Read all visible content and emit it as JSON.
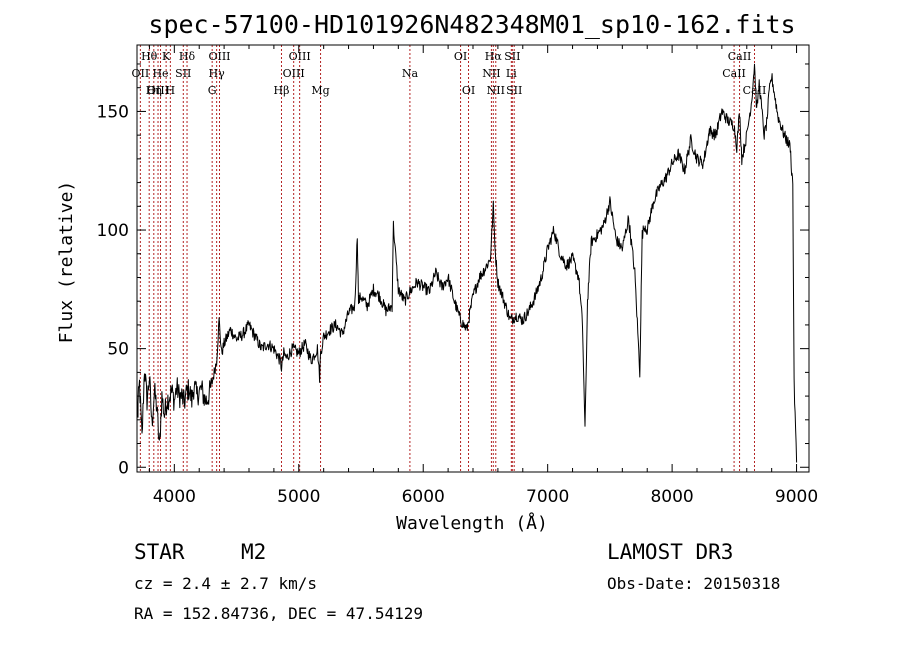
{
  "chart_data": {
    "type": "line",
    "title": "spec-57100-HD101926N482348M01_sp10-162.fits",
    "xlabel": "Wavelength (Å)",
    "ylabel": "Flux (relative)",
    "xlim": [
      3700,
      9100
    ],
    "ylim": [
      -2,
      178
    ],
    "xticks": [
      4000,
      5000,
      6000,
      7000,
      8000,
      9000
    ],
    "yticks": [
      0,
      50,
      100,
      150
    ],
    "xtick_labels": [
      "4000",
      "5000",
      "6000",
      "7000",
      "8000",
      "9000"
    ],
    "ytick_labels": [
      "0",
      "50",
      "100",
      "150"
    ],
    "series": [
      {
        "x": [
          3700,
          3720,
          3740,
          3760,
          3780,
          3800,
          3820,
          3840,
          3860,
          3880,
          3900,
          3920,
          3940,
          3960,
          3980,
          4000,
          4020,
          4040,
          4060,
          4080,
          4100,
          4120,
          4140,
          4160,
          4180,
          4200,
          4220,
          4240,
          4260,
          4280,
          4300,
          4320,
          4340,
          4360,
          4380,
          4400,
          4450,
          4500,
          4550,
          4600,
          4650,
          4700,
          4750,
          4800,
          4850,
          4861,
          4880,
          4900,
          4950,
          5000,
          5050,
          5100,
          5150,
          5167,
          5175,
          5200,
          5250,
          5300,
          5350,
          5400,
          5450,
          5470,
          5480,
          5500,
          5550,
          5600,
          5650,
          5700,
          5750,
          5760,
          5800,
          5850,
          5893,
          5950,
          6000,
          6050,
          6100,
          6150,
          6200,
          6250,
          6300,
          6350,
          6400,
          6450,
          6500,
          6540,
          6563,
          6580,
          6600,
          6650,
          6700,
          6750,
          6800,
          6850,
          6900,
          6950,
          7000,
          7050,
          7100,
          7150,
          7200,
          7250,
          7280,
          7300,
          7320,
          7350,
          7400,
          7450,
          7500,
          7550,
          7600,
          7650,
          7700,
          7740,
          7760,
          7780,
          7800,
          7850,
          7900,
          7950,
          8000,
          8050,
          8100,
          8150,
          8200,
          8250,
          8300,
          8350,
          8400,
          8450,
          8498,
          8520,
          8542,
          8560,
          8600,
          8640,
          8662,
          8680,
          8700,
          8740,
          8760,
          8780,
          8800,
          8850,
          8900,
          8950,
          8960,
          8970,
          8980,
          9000
        ],
        "values": [
          20,
          35,
          12,
          42,
          28,
          38,
          18,
          32,
          25,
          8,
          30,
          22,
          28,
          30,
          32,
          28,
          34,
          30,
          30,
          27,
          32,
          33,
          28,
          35,
          30,
          32,
          33,
          29,
          28,
          31,
          35,
          40,
          45,
          62,
          48,
          52,
          58,
          54,
          56,
          60,
          55,
          50,
          52,
          50,
          45,
          42,
          48,
          46,
          50,
          48,
          52,
          45,
          50,
          38,
          48,
          55,
          58,
          60,
          56,
          65,
          68,
          98,
          70,
          72,
          68,
          75,
          72,
          66,
          68,
          102,
          75,
          70,
          74,
          78,
          76,
          74,
          82,
          76,
          80,
          70,
          62,
          58,
          72,
          80,
          84,
          88,
          110,
          90,
          78,
          70,
          62,
          64,
          62,
          66,
          72,
          80,
          92,
          100,
          90,
          85,
          88,
          80,
          60,
          15,
          70,
          95,
          98,
          102,
          112,
          96,
          92,
          105,
          82,
          40,
          98,
          102,
          100,
          112,
          118,
          122,
          128,
          132,
          125,
          138,
          130,
          128,
          142,
          140,
          150,
          146,
          144,
          135,
          150,
          130,
          140,
          155,
          170,
          150,
          162,
          140,
          145,
          158,
          165,
          148,
          140,
          135,
          125,
          120,
          35,
          2
        ]
      }
    ],
    "spectral_lines": [
      {
        "label": "Hθ",
        "wavelength": 3798,
        "row": 1
      },
      {
        "label": "OII",
        "wavelength": 3727,
        "row": 2
      },
      {
        "label": "He",
        "wavelength": 3889,
        "row": 2
      },
      {
        "label": "OIII",
        "wavelength": 3869,
        "row": 3
      },
      {
        "label": "Hη",
        "wavelength": 3835,
        "row": 3
      },
      {
        "label": "K",
        "wavelength": 3934,
        "row": 1
      },
      {
        "label": "H",
        "wavelength": 3968,
        "row": 3
      },
      {
        "label": "SII",
        "wavelength": 4072,
        "row": 2
      },
      {
        "label": "Hδ",
        "wavelength": 4102,
        "row": 1
      },
      {
        "label": "OIII",
        "wavelength": 4363,
        "row": 1
      },
      {
        "label": "Hγ",
        "wavelength": 4340,
        "row": 2
      },
      {
        "label": "G",
        "wavelength": 4304,
        "row": 3
      },
      {
        "label": "Hβ",
        "wavelength": 4861,
        "row": 3
      },
      {
        "label": "OIII",
        "wavelength": 5007,
        "row": 1
      },
      {
        "label": "OIII",
        "wavelength": 4959,
        "row": 2
      },
      {
        "label": "Mg",
        "wavelength": 5175,
        "row": 3
      },
      {
        "label": "Na",
        "wavelength": 5893,
        "row": 2
      },
      {
        "label": "OI",
        "wavelength": 6300,
        "row": 1
      },
      {
        "label": "OI",
        "wavelength": 6364,
        "row": 3
      },
      {
        "label": "Hα",
        "wavelength": 6563,
        "row": 1
      },
      {
        "label": "NII",
        "wavelength": 6548,
        "row": 2
      },
      {
        "label": "NII",
        "wavelength": 6583,
        "row": 3
      },
      {
        "label": "SII",
        "wavelength": 6716,
        "row": 1
      },
      {
        "label": "Li",
        "wavelength": 6708,
        "row": 2
      },
      {
        "label": "SII",
        "wavelength": 6731,
        "row": 3
      },
      {
        "label": "CaII",
        "wavelength": 8542,
        "row": 1
      },
      {
        "label": "CaII",
        "wavelength": 8498,
        "row": 2
      },
      {
        "label": "CaII",
        "wavelength": 8662,
        "row": 3
      }
    ],
    "line_color": "#000000",
    "marker_color": "#b22222",
    "grid": false
  },
  "info": {
    "object_class": "STAR",
    "subclass": "M2",
    "survey": "LAMOST DR3",
    "redshift": "cz = 2.4 ± 2.7 km/s",
    "obs_date": "Obs-Date: 20150318",
    "coords": "RA = 152.84736, DEC =  47.54129"
  }
}
